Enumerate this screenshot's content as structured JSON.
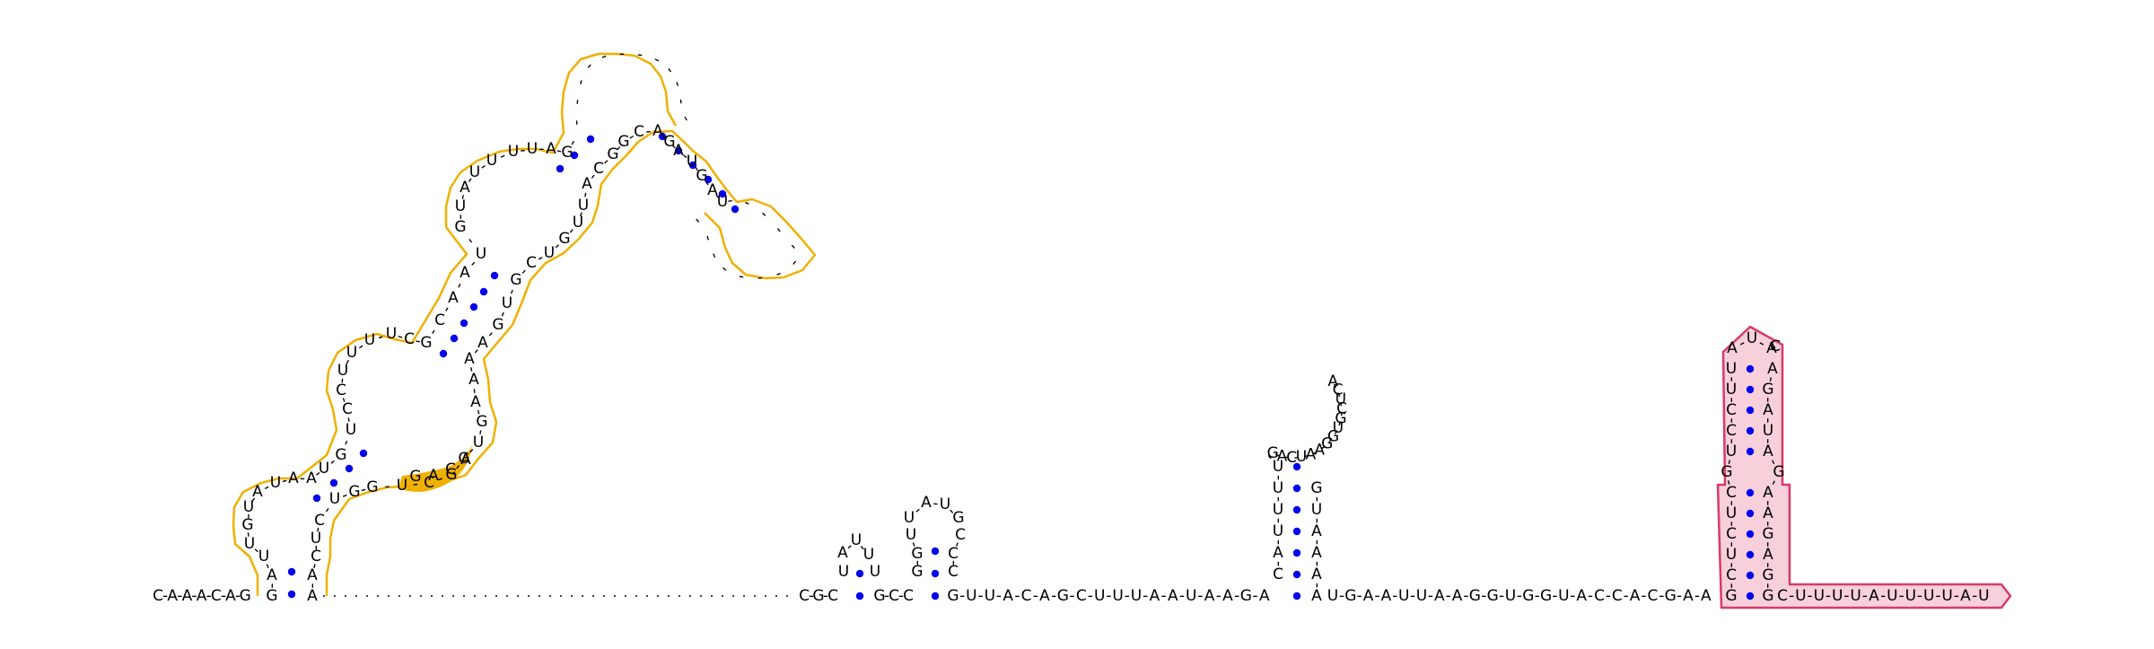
{
  "colors": {
    "bg": "#ffffff",
    "base_text": "#000000",
    "pair_dot": "#0000ee",
    "highlight_1_stroke": "#f0b000",
    "highlight_1_fill": "#f0b000",
    "highlight_2_stroke": "#d83a6a",
    "highlight_2_fill": "#f8d0da",
    "gap_dots": "#444444"
  },
  "glyphs": {
    "backbone": "-"
  },
  "structure": {
    "leader": "C-A-A-A-C-A-G",
    "hairpin_a_loop": "A-U-U",
    "hairpin_a_stem_left": "U",
    "hairpin_a_stem_right": "U",
    "hairpin_a_close": "C-G-C",
    "hairpin_a_after": "G-C-C",
    "hairpin_b_loop": "U-A-U-G",
    "hairpin_b_stem_left": "G-G-U",
    "hairpin_b_stem_right": "C-C-C",
    "linker_1": "G-U-U-A-C-A-G-C-U-U-U-A-A-U-A-A-G-A",
    "hairpin_c_stem_left": "C-A-U-U-U-U",
    "hairpin_c_loop": "G-A-C-U-A-A-G-G-U-G-C-U-C-A",
    "hairpin_c_stem_right": "A-A-A-A-U-G",
    "linker_2": "U-G-A-A-U-U-A-A-G-G-U-G-G-U-A-C-C-A-C-G-A-A",
    "hairpin_d_stem_left": "G-C-U-C-U-C-G-U-C-C-U-U",
    "hairpin_d_loop": "A-U-A-C",
    "hairpin_d_stem_right": "A-G-A-U-A-G-A-A-G-A-G-G",
    "tail": "C-U-U-U-U-A-U-U-U-U-A-U",
    "large_domain_left_strand": "G-A-U-U-G-U-A-U-A-A-U-G-U-C-C-U-U-U-U-C-G-C-A-A-U-G-U-A-U-U-U-U-A-G-A-G",
    "large_domain_right_strand": "A-A-C-U-C-U-G-G-U-C-G-G-U-G-A-A-A-A-G-U-G-C-U-G-U-U-A-C-G-G-C-A-G-A-U-G-A-U-U-A-C-A-G-A-A-G-U-C",
    "highlight_segment": "G-A-C-A"
  }
}
